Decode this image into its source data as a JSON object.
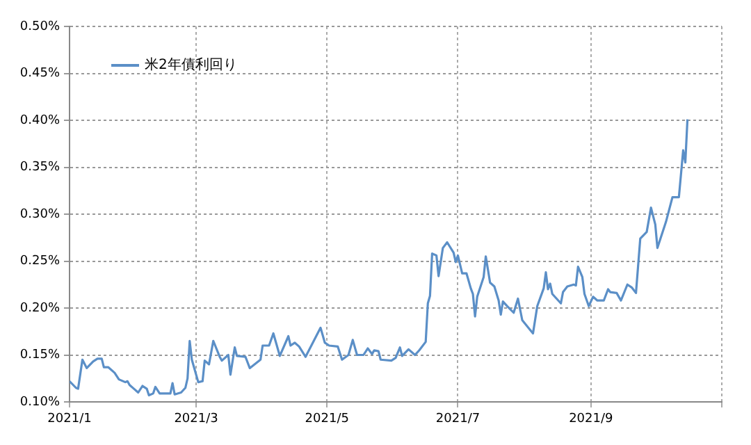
{
  "chart_data": {
    "type": "line",
    "x": [
      "2021-01-01",
      "2021-01-04",
      "2021-01-05",
      "2021-01-07",
      "2021-01-09",
      "2021-01-12",
      "2021-01-14",
      "2021-01-16",
      "2021-01-17",
      "2021-01-19",
      "2021-01-22",
      "2021-01-24",
      "2021-01-27",
      "2021-01-28",
      "2021-01-29",
      "2021-01-31",
      "2021-02-02",
      "2021-02-04",
      "2021-02-06",
      "2021-02-07",
      "2021-02-09",
      "2021-02-10",
      "2021-02-12",
      "2021-02-17",
      "2021-02-18",
      "2021-02-19",
      "2021-02-22",
      "2021-02-24",
      "2021-02-25",
      "2021-02-26",
      "2021-02-27",
      "2021-03-02",
      "2021-03-04",
      "2021-03-05",
      "2021-03-07",
      "2021-03-09",
      "2021-03-12",
      "2021-03-13",
      "2021-03-16",
      "2021-03-17",
      "2021-03-19",
      "2021-03-20",
      "2021-03-24",
      "2021-03-26",
      "2021-03-31",
      "2021-04-01",
      "2021-04-04",
      "2021-04-06",
      "2021-04-09",
      "2021-04-13",
      "2021-04-14",
      "2021-04-16",
      "2021-04-18",
      "2021-04-21",
      "2021-04-28",
      "2021-04-30",
      "2021-05-02",
      "2021-05-06",
      "2021-05-08",
      "2021-05-11",
      "2021-05-13",
      "2021-05-15",
      "2021-05-18",
      "2021-05-20",
      "2021-05-22",
      "2021-05-23",
      "2021-05-25",
      "2021-05-26",
      "2021-05-31",
      "2021-06-02",
      "2021-06-04",
      "2021-06-05",
      "2021-06-08",
      "2021-06-11",
      "2021-06-13",
      "2021-06-16",
      "2021-06-17",
      "2021-06-18",
      "2021-06-19",
      "2021-06-21",
      "2021-06-22",
      "2021-06-24",
      "2021-06-26",
      "2021-06-29",
      "2021-06-30",
      "2021-07-01",
      "2021-07-03",
      "2021-07-05",
      "2021-07-07",
      "2021-07-08",
      "2021-07-09",
      "2021-07-10",
      "2021-07-13",
      "2021-07-14",
      "2021-07-16",
      "2021-07-18",
      "2021-07-20",
      "2021-07-21",
      "2021-07-22",
      "2021-07-24",
      "2021-07-27",
      "2021-07-29",
      "2021-07-31",
      "2021-08-05",
      "2021-08-07",
      "2021-08-10",
      "2021-08-11",
      "2021-08-12",
      "2021-08-13",
      "2021-08-14",
      "2021-08-18",
      "2021-08-19",
      "2021-08-21",
      "2021-08-24",
      "2021-08-25",
      "2021-08-26",
      "2021-08-28",
      "2021-08-29",
      "2021-08-31",
      "2021-09-02",
      "2021-09-04",
      "2021-09-07",
      "2021-09-09",
      "2021-09-10",
      "2021-09-13",
      "2021-09-15",
      "2021-09-18",
      "2021-09-20",
      "2021-09-22",
      "2021-09-24",
      "2021-09-27",
      "2021-09-29",
      "2021-10-01",
      "2021-10-02",
      "2021-10-06",
      "2021-10-09",
      "2021-10-12",
      "2021-10-14",
      "2021-10-15",
      "2021-10-16"
    ],
    "series": [
      {
        "name": "米2年債利回り",
        "color": "#5b8fc7",
        "values": [
          0.122,
          0.115,
          0.114,
          0.145,
          0.136,
          0.143,
          0.146,
          0.146,
          0.137,
          0.137,
          0.131,
          0.124,
          0.121,
          0.122,
          0.118,
          0.114,
          0.11,
          0.117,
          0.114,
          0.107,
          0.109,
          0.116,
          0.109,
          0.109,
          0.12,
          0.108,
          0.11,
          0.115,
          0.125,
          0.165,
          0.145,
          0.121,
          0.122,
          0.144,
          0.14,
          0.165,
          0.148,
          0.144,
          0.15,
          0.129,
          0.158,
          0.149,
          0.148,
          0.136,
          0.145,
          0.16,
          0.16,
          0.173,
          0.149,
          0.17,
          0.16,
          0.163,
          0.159,
          0.148,
          0.179,
          0.163,
          0.16,
          0.159,
          0.145,
          0.15,
          0.166,
          0.15,
          0.15,
          0.157,
          0.151,
          0.155,
          0.154,
          0.145,
          0.144,
          0.147,
          0.158,
          0.149,
          0.156,
          0.15,
          0.155,
          0.164,
          0.205,
          0.213,
          0.258,
          0.256,
          0.234,
          0.264,
          0.27,
          0.259,
          0.249,
          0.256,
          0.237,
          0.237,
          0.221,
          0.215,
          0.191,
          0.212,
          0.233,
          0.255,
          0.227,
          0.223,
          0.208,
          0.193,
          0.207,
          0.202,
          0.195,
          0.21,
          0.187,
          0.173,
          0.202,
          0.221,
          0.238,
          0.22,
          0.226,
          0.215,
          0.205,
          0.217,
          0.223,
          0.225,
          0.224,
          0.244,
          0.233,
          0.215,
          0.202,
          0.212,
          0.208,
          0.208,
          0.22,
          0.217,
          0.216,
          0.208,
          0.225,
          0.222,
          0.216,
          0.274,
          0.281,
          0.307,
          0.289,
          0.264,
          0.292,
          0.318,
          0.318,
          0.368,
          0.355,
          0.401
        ]
      }
    ],
    "xlim": [
      "2021-01-01",
      "2021-11-01"
    ],
    "xticks": [
      {
        "value": "2021-01-01",
        "label": "2021/1"
      },
      {
        "value": "2021-03-01",
        "label": "2021/3"
      },
      {
        "value": "2021-05-01",
        "label": "2021/5"
      },
      {
        "value": "2021-07-01",
        "label": "2021/7"
      },
      {
        "value": "2021-09-01",
        "label": "2021/9"
      },
      {
        "value": "2021-11-01",
        "label": null
      }
    ],
    "ylim": [
      0.1,
      0.5
    ],
    "yticks": [
      {
        "value": 0.1,
        "label": "0.10%"
      },
      {
        "value": 0.15,
        "label": "0.15%"
      },
      {
        "value": 0.2,
        "label": "0.20%"
      },
      {
        "value": 0.25,
        "label": "0.25%"
      },
      {
        "value": 0.3,
        "label": "0.30%"
      },
      {
        "value": 0.35,
        "label": "0.35%"
      },
      {
        "value": 0.4,
        "label": "0.40%"
      },
      {
        "value": 0.45,
        "label": "0.45%"
      },
      {
        "value": 0.5,
        "label": "0.50%"
      }
    ],
    "grid": true,
    "legend": "top left",
    "marker": "none",
    "line_style": "solid"
  }
}
